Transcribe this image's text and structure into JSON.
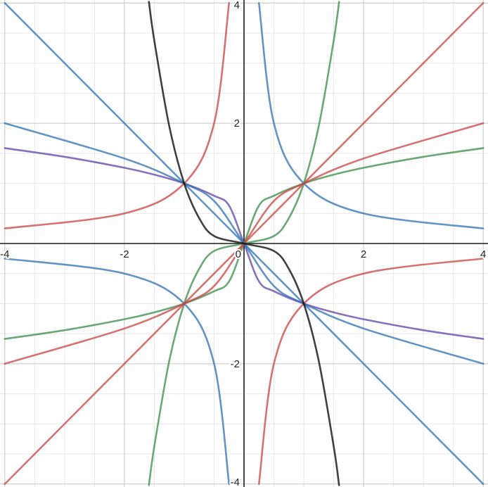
{
  "chart_data": {
    "type": "line",
    "xlim": [
      -4.08,
      4.08
    ],
    "ylim": [
      -4.05,
      4.05
    ],
    "grid": true,
    "minor_grid_step": 0.5,
    "major_grid_step": 2,
    "x_ticks": [
      {
        "value": -4,
        "label": "-4"
      },
      {
        "value": -2,
        "label": "-2"
      },
      {
        "value": 0,
        "label": "0"
      },
      {
        "value": 2,
        "label": "2"
      },
      {
        "value": 4,
        "label": "4"
      }
    ],
    "y_ticks": [
      {
        "value": -4,
        "label": "-4"
      },
      {
        "value": -2,
        "label": "-2"
      },
      {
        "value": 2,
        "label": "2"
      },
      {
        "value": 4,
        "label": "4"
      }
    ],
    "series": [
      {
        "color": "#388c46",
        "x": [
          -4,
          -3,
          -2,
          -1.5,
          -1,
          -0.5,
          -0.25,
          0,
          0.25,
          0.5,
          1,
          1.5,
          2,
          3,
          4
        ],
        "y": [
          -1.587,
          -1.442,
          -1.26,
          -1.145,
          -1,
          -0.794,
          -0.63,
          0,
          0.63,
          0.794,
          1,
          1.145,
          1.26,
          1.442,
          1.587
        ]
      },
      {
        "color": "#388c46",
        "x": [
          -1.59,
          -1.5,
          -1.25,
          -1,
          -0.75,
          -0.5,
          0,
          0.5,
          0.75,
          1,
          1.25,
          1.5,
          1.59
        ],
        "y": [
          -4.02,
          -3.375,
          -1.953,
          -1,
          -0.422,
          -0.125,
          0,
          0.125,
          0.422,
          1,
          1.953,
          3.375,
          4.02
        ]
      },
      {
        "color": "#6042a6",
        "x": [
          -4,
          -3,
          -2,
          -1.5,
          -1,
          -0.5,
          -0.25,
          0,
          0.25,
          0.5,
          1,
          1.5,
          2,
          3,
          4
        ],
        "y": [
          1.587,
          1.442,
          1.26,
          1.145,
          1,
          0.794,
          0.63,
          0,
          -0.63,
          -0.794,
          -1,
          -1.145,
          -1.26,
          -1.442,
          -1.587
        ]
      },
      {
        "color": "#2d70b3",
        "x": [
          -4,
          -2,
          0,
          2,
          4
        ],
        "y": [
          4,
          2,
          0,
          -2,
          -4
        ]
      },
      {
        "color": "#2d70b3",
        "x": [
          -4,
          -2,
          -1,
          -0.5,
          0,
          0.5,
          1,
          2,
          4
        ],
        "y": [
          2,
          1.414,
          1,
          0.707,
          0,
          -0.707,
          -1,
          -1.414,
          -2
        ]
      },
      {
        "color": "#2d70b3",
        "x": [
          -4,
          -2,
          -1,
          -0.5,
          -0.25,
          0.25,
          0.5,
          1,
          2,
          4
        ],
        "y": [
          -0.25,
          -0.5,
          -1,
          -2,
          -4,
          4,
          2,
          1,
          0.5,
          0.25
        ]
      },
      {
        "color": "#c74440",
        "x": [
          -4,
          -2,
          0,
          2,
          4
        ],
        "y": [
          -4,
          -2,
          0,
          2,
          4
        ]
      },
      {
        "color": "#c74440",
        "x": [
          -4,
          -2,
          -1,
          -0.5,
          0,
          0.5,
          1,
          2,
          4
        ],
        "y": [
          -2,
          -1.414,
          -1,
          -0.707,
          0,
          0.707,
          1,
          1.414,
          2
        ]
      },
      {
        "color": "#c74440",
        "x": [
          -4,
          -2,
          -1,
          -0.5,
          -0.25,
          0.25,
          0.5,
          1,
          2,
          4
        ],
        "y": [
          0.25,
          0.5,
          1,
          2,
          4,
          -4,
          -2,
          -1,
          -0.5,
          -0.25
        ]
      },
      {
        "color": "#000000",
        "x": [
          -1.59,
          -1.5,
          -1.25,
          -1,
          -0.75,
          -0.5,
          0,
          0.5,
          0.75,
          1,
          1.25,
          1.5,
          1.59
        ],
        "y": [
          4.02,
          3.375,
          1.953,
          1,
          0.422,
          0.125,
          0,
          -0.125,
          -0.422,
          -1,
          -1.953,
          -3.375,
          -4.02
        ]
      }
    ]
  }
}
